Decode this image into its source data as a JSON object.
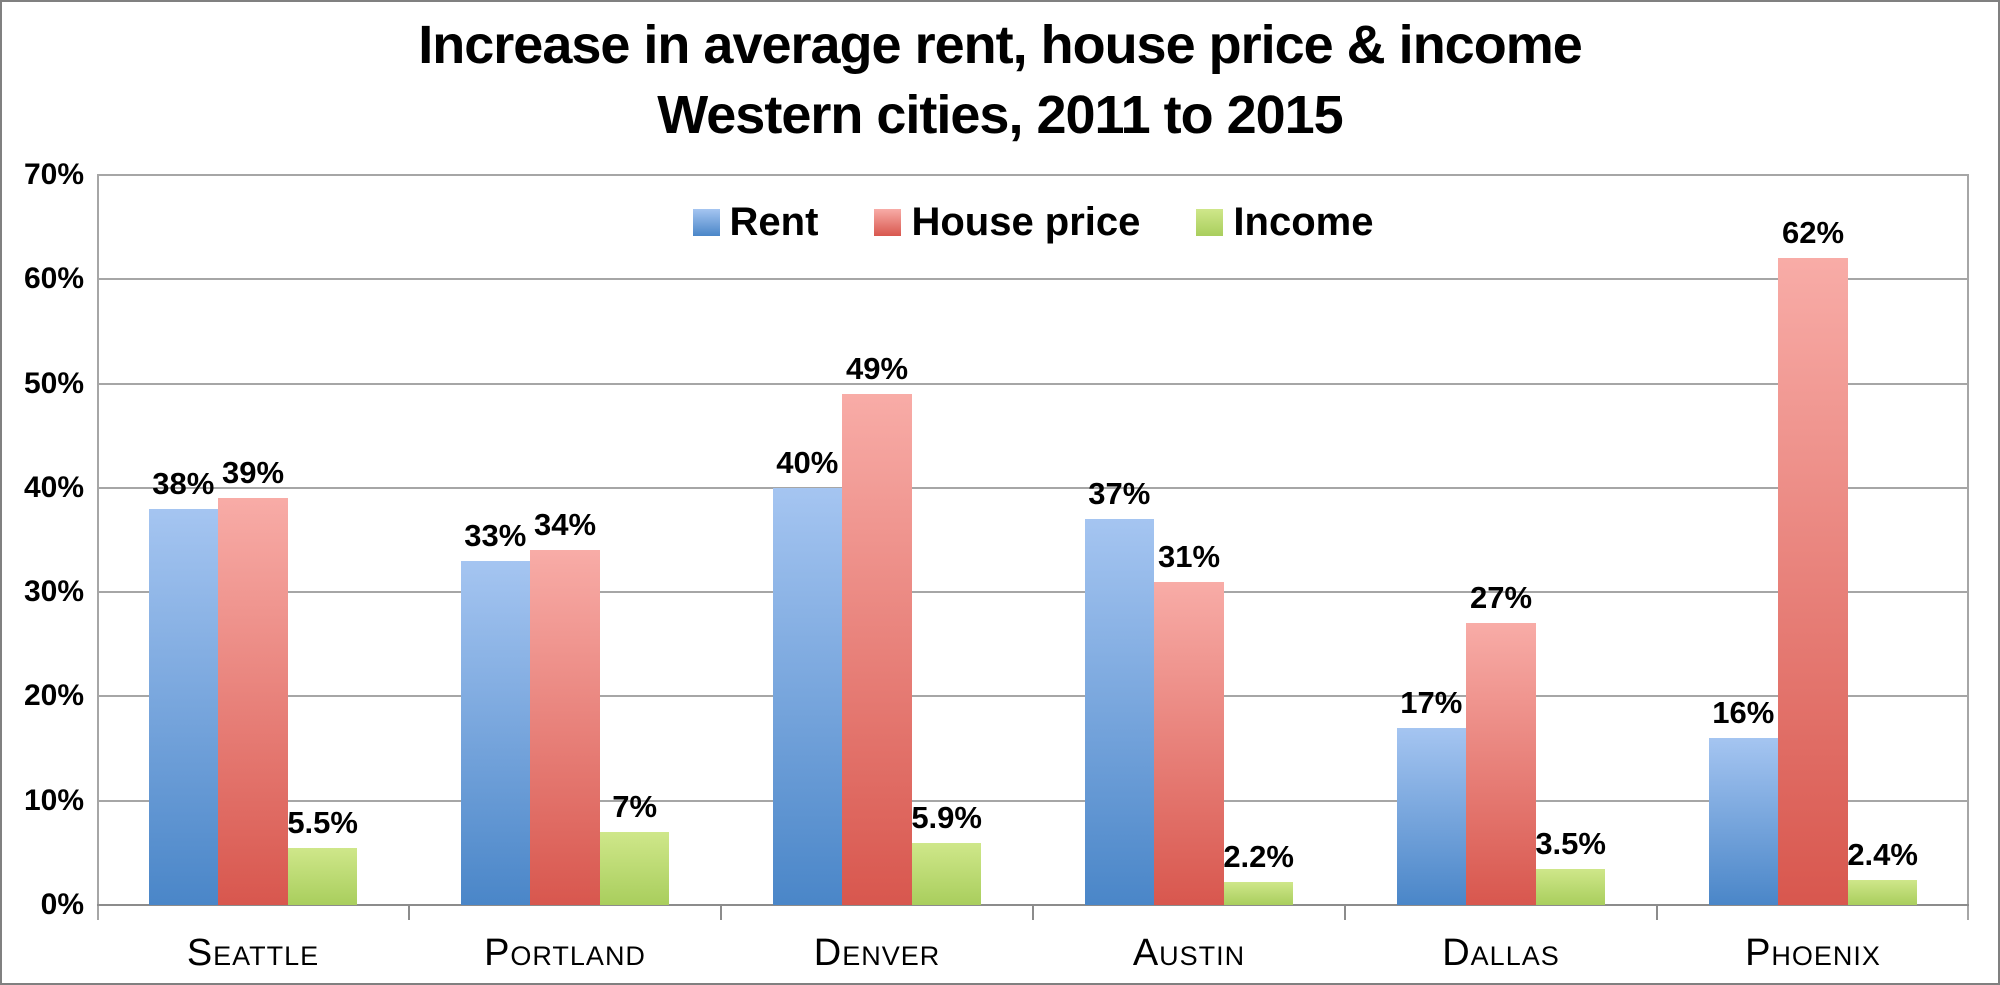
{
  "chart_data": {
    "type": "bar",
    "title_lines": [
      "Increase in average rent, house price & income",
      "Western cities, 2011 to 2015"
    ],
    "categories": [
      "Seattle",
      "Portland",
      "Denver",
      "Austin",
      "Dallas",
      "Phoenix"
    ],
    "series": [
      {
        "name": "Rent",
        "color_light": "#A5C5F1",
        "color_dark": "#4A86C8",
        "values": [
          38,
          33,
          40,
          37,
          17,
          16
        ],
        "labels": [
          "38%",
          "33%",
          "40%",
          "37%",
          "17%",
          "16%"
        ]
      },
      {
        "name": "House price",
        "color_light": "#F8ACA7",
        "color_dark": "#D8574E",
        "values": [
          39,
          34,
          49,
          31,
          27,
          62
        ],
        "labels": [
          "39%",
          "34%",
          "49%",
          "31%",
          "27%",
          "62%"
        ]
      },
      {
        "name": "Income",
        "color_light": "#CFE78A",
        "color_dark": "#A9CE5D",
        "values": [
          5.5,
          7,
          5.9,
          2.2,
          3.5,
          2.4
        ],
        "labels": [
          "5.5%",
          "7%",
          "5.9%",
          "2.2%",
          "3.5%",
          "2.4%"
        ]
      }
    ],
    "yaxis": {
      "min": 0,
      "max": 70,
      "step": 10,
      "tick_labels": [
        "0%",
        "10%",
        "20%",
        "30%",
        "40%",
        "50%",
        "60%",
        "70%"
      ]
    },
    "legend_position": "top-center",
    "grid": true,
    "colors": {
      "gridline": "#A6A6A6",
      "axis": "#8C8C8C",
      "frame_border": "#808080",
      "text": "#000000"
    }
  }
}
